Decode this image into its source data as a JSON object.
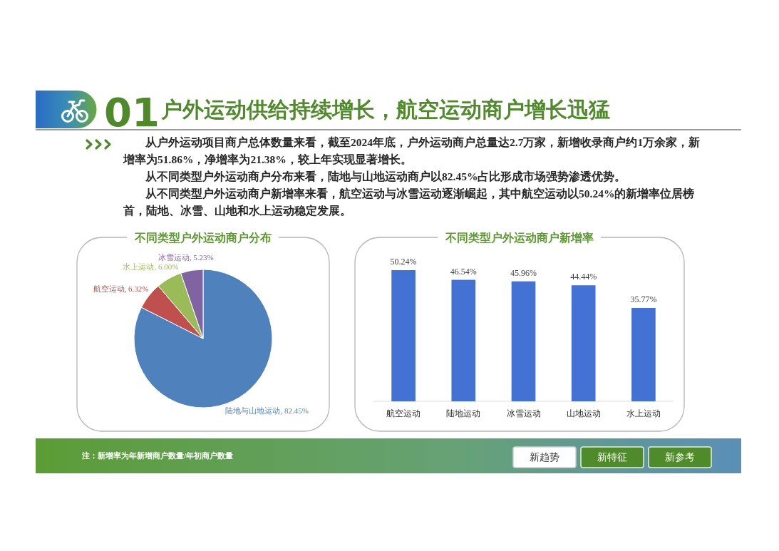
{
  "chart_data": [
    {
      "type": "other",
      "title": "户外运动供给持续增长，航空运动商户增长迅猛",
      "annotations": [
        "01",
        "从户外运动项目商户总体数量来看，截至2024年底，户外运动商户总量达2.7万家，新增收录商户约1万余家，新增率为51.86%，净增率为21.38%，较上年实现显著增长。",
        "从不同类型户外运动商户分布来看，陆地与山地运动商户以82.45%占比形成市场强势渗透优势。",
        "从不同类型户外运动商户新增率来看，航空运动与冰雪运动逐渐崛起，其中航空运动以50.24%的新增率位居榜首，陆地、冰雪、山地和水上运动稳定发展。"
      ]
    },
    {
      "type": "pie",
      "title": "不同类型户外运动商户分布",
      "categories": [
        "陆地与山地运动",
        "航空运动",
        "水上运动",
        "冰雪运动"
      ],
      "values": [
        82.45,
        6.32,
        6.0,
        5.23
      ],
      "colors": [
        "#4f81bd",
        "#c0504d",
        "#9bbb59",
        "#8064a2"
      ],
      "value_labels": [
        "82.45%",
        "6.32%",
        "6.00%",
        "5.23%"
      ]
    },
    {
      "type": "bar",
      "title": "不同类型户外运动商户新增率",
      "categories": [
        "航空运动",
        "陆地运动",
        "冰雪运动",
        "山地运动",
        "水上运动"
      ],
      "values": [
        50.24,
        46.54,
        45.96,
        44.44,
        35.77
      ],
      "color": "#4472d4",
      "value_labels": [
        "50.24%",
        "46.54%",
        "45.96%",
        "44.44%",
        "35.77%"
      ]
    },
    {
      "type": "other",
      "annotations": [
        "注：新增率为年新增商户数量/年初商户数量",
        "新趋势",
        "新特征",
        "新参考"
      ]
    }
  ]
}
